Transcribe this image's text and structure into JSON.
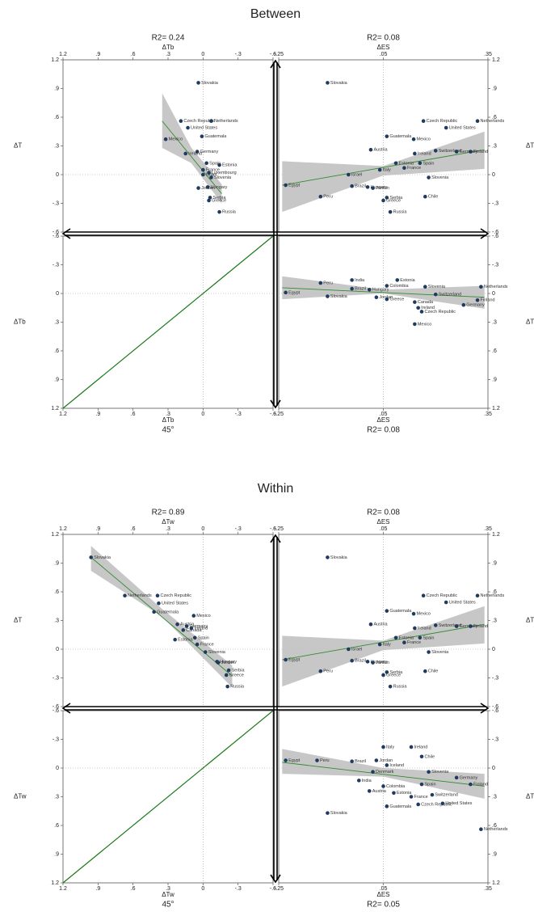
{
  "chart_data": [
    {
      "type": "scatter",
      "title": "Between",
      "annotation": "R2= 0.24",
      "xlabel": "ΔTb",
      "ylabel": "ΔT",
      "xaxis": "top",
      "yaxis": "left",
      "xlim": [
        1.2,
        -0.6
      ],
      "xticks": [
        1.2,
        {
          "value": 0.9,
          "label": ".9"
        },
        {
          "value": 0.6,
          "label": ".6"
        },
        {
          "value": 0.3,
          "label": ".3"
        },
        0,
        {
          "value": -0.3,
          "label": "-.3"
        },
        {
          "value": -0.6,
          "label": "-.6"
        }
      ],
      "ylim": [
        -0.6,
        1.2
      ],
      "yticks": [
        {
          "value": -0.6,
          "label": "-.6"
        },
        {
          "value": -0.3,
          "label": "-.3"
        },
        0,
        {
          "value": 0.3,
          "label": ".3"
        },
        {
          "value": 0.6,
          "label": ".6"
        },
        {
          "value": 0.9,
          "label": ".9"
        },
        1.2
      ],
      "reflines": {
        "x": 0,
        "y": 0
      },
      "color": "#1f3b5e",
      "labels": [
        "Slovakia",
        "Czech Republic",
        "Netherlands",
        "United States",
        "Guatemala",
        "Mexico",
        "Germany",
        "Ireland",
        "Estonia",
        "Spain",
        "Luxembourg",
        "France",
        "Slovenia",
        "Israel",
        "Hungary",
        "Jordan",
        "Serbia",
        "Greece",
        "Russia"
      ],
      "x": [
        0.04,
        0.19,
        -0.07,
        0.13,
        0.01,
        0.32,
        0.05,
        0.15,
        -0.14,
        -0.03,
        -0.05,
        0.0,
        -0.07,
        0.0,
        -0.04,
        0.04,
        -0.06,
        -0.05,
        -0.14
      ],
      "values": [
        0.96,
        0.56,
        0.56,
        0.49,
        0.4,
        0.37,
        0.24,
        0.22,
        0.1,
        0.12,
        0.02,
        0.05,
        -0.03,
        0.0,
        -0.13,
        -0.14,
        -0.24,
        -0.27,
        -0.39
      ],
      "fit": {
        "color": "#2e8b2e",
        "x": [
          0.35,
          -0.16
        ],
        "values": [
          0.56,
          -0.2
        ]
      },
      "ci": {
        "color": "#bdbdbd",
        "x": [
          0.35,
          0.1,
          -0.16
        ],
        "lo": [
          0.28,
          0.12,
          -0.3
        ],
        "hi": [
          0.85,
          0.28,
          -0.1
        ]
      }
    },
    {
      "type": "scatter",
      "annotation": "R2= 0.08",
      "xlabel": "ΔES",
      "ylabel": "ΔT",
      "xaxis": "top",
      "yaxis": "right",
      "xlim": [
        -0.25,
        0.35
      ],
      "xticks": [
        {
          "value": -0.25,
          "label": "-.25"
        },
        {
          "value": 0.05,
          "label": ".05"
        },
        {
          "value": 0.35,
          "label": ".35"
        }
      ],
      "ylim": [
        -0.6,
        1.2
      ],
      "yticks": [
        {
          "value": -0.6,
          "label": "-.6"
        },
        {
          "value": -0.3,
          "label": "-.3"
        },
        0,
        {
          "value": 0.3,
          "label": ".3"
        },
        {
          "value": 0.6,
          "label": ".6"
        },
        {
          "value": 0.9,
          "label": ".9"
        },
        1.2
      ],
      "reflines": {
        "x": 0.05,
        "y": 0
      },
      "color": "#1f3b5e",
      "labels": [
        "Slovakia",
        "Czech Republic",
        "Netherlands",
        "United States",
        "Guatemala",
        "Mexico",
        "Austria",
        "Switzerland",
        "Germany",
        "Finland",
        "Ireland",
        "Estonia",
        "Spain",
        "France",
        "Italy",
        "Slovenia",
        "Israel",
        "Egypt",
        "Brazil",
        "Hungary",
        "Jordan",
        "Peru",
        "Serbia",
        "Greece",
        "Chile",
        "Russia"
      ],
      "x": [
        -0.11,
        0.165,
        0.32,
        0.23,
        0.06,
        0.137,
        0.014,
        0.2,
        0.26,
        0.3,
        0.14,
        0.086,
        0.155,
        0.11,
        0.04,
        0.18,
        -0.05,
        -0.23,
        -0.04,
        0.005,
        0.02,
        -0.13,
        0.06,
        0.05,
        0.17,
        0.07
      ],
      "values": [
        0.96,
        0.56,
        0.56,
        0.49,
        0.4,
        0.37,
        0.26,
        0.25,
        0.24,
        0.24,
        0.22,
        0.12,
        0.12,
        0.07,
        0.05,
        -0.03,
        0.0,
        -0.11,
        -0.12,
        -0.13,
        -0.14,
        -0.23,
        -0.24,
        -0.27,
        -0.23,
        -0.39
      ],
      "fit": {
        "color": "#2e8b2e",
        "x": [
          -0.24,
          0.34
        ],
        "values": [
          -0.11,
          0.26
        ]
      },
      "ci": {
        "color": "#bdbdbd",
        "x": [
          -0.24,
          0.05,
          0.34
        ],
        "lo": [
          -0.39,
          -0.01,
          0.06
        ],
        "hi": [
          0.14,
          0.09,
          0.45
        ]
      }
    },
    {
      "type": "line",
      "annotation": "45°",
      "xlabel": "ΔTb",
      "ylabel": "ΔTb",
      "xaxis": "bottom",
      "yaxis": "left",
      "xlim": [
        1.2,
        -0.6
      ],
      "xticks": [
        1.2,
        {
          "value": 0.9,
          "label": ".9"
        },
        {
          "value": 0.6,
          "label": ".6"
        },
        {
          "value": 0.3,
          "label": ".3"
        },
        0,
        {
          "value": -0.3,
          "label": "-.3"
        },
        {
          "value": -0.6,
          "label": "-.6"
        }
      ],
      "ylim": [
        1.2,
        -0.6
      ],
      "yticks": [
        {
          "value": -0.6,
          "label": "-.6"
        },
        {
          "value": -0.3,
          "label": "-.3"
        },
        0,
        {
          "value": 0.3,
          "label": ".3"
        },
        {
          "value": 0.6,
          "label": ".6"
        },
        {
          "value": 0.9,
          "label": ".9"
        },
        1.2
      ],
      "reflines": {
        "x": 0,
        "y": 0
      },
      "color": "#1a7a1a",
      "x": [
        1.2,
        -0.6
      ],
      "values": [
        1.2,
        -0.6
      ]
    },
    {
      "type": "scatter",
      "annotation": "R2= 0.08",
      "xlabel": "ΔES",
      "ylabel": "ΔTb",
      "xaxis": "bottom",
      "yaxis": "right",
      "xlim": [
        -0.25,
        0.35
      ],
      "xticks": [
        {
          "value": -0.25,
          "label": "-.25"
        },
        {
          "value": 0.05,
          "label": ".05"
        },
        {
          "value": 0.35,
          "label": ".35"
        }
      ],
      "ylim": [
        1.2,
        -0.6
      ],
      "yticks": [
        {
          "value": -0.6,
          "label": "-.6"
        },
        {
          "value": -0.3,
          "label": "-.3"
        },
        0,
        {
          "value": 0.3,
          "label": ".3"
        },
        {
          "value": 0.6,
          "label": ".6"
        },
        {
          "value": 0.9,
          "label": ".9"
        },
        1.2
      ],
      "reflines": {
        "x": 0.05,
        "y": 0
      },
      "color": "#1f3b5e",
      "labels": [
        "Egypt",
        "Peru",
        "India",
        "Slovakia",
        "Brazil",
        "Hungary",
        "Jordan",
        "Estonia",
        "Colombia",
        "Slovenia",
        "Netherlands",
        "Switzerland",
        "Finland",
        "Germany",
        "Canada",
        "Ireland",
        "Czech Republic",
        "Mexico",
        "Greece"
      ],
      "x": [
        -0.23,
        -0.13,
        -0.04,
        -0.11,
        -0.04,
        0.01,
        0.03,
        0.09,
        0.06,
        0.17,
        0.33,
        0.2,
        0.32,
        0.28,
        0.14,
        0.15,
        0.16,
        0.14,
        0.06
      ],
      "values": [
        -0.01,
        -0.11,
        -0.14,
        0.03,
        -0.05,
        -0.04,
        0.04,
        -0.14,
        -0.08,
        -0.07,
        -0.07,
        0.01,
        0.07,
        0.12,
        0.09,
        0.15,
        0.19,
        0.32,
        0.06
      ],
      "fit": {
        "color": "#2e8b2e",
        "x": [
          -0.24,
          0.34
        ],
        "values": [
          -0.06,
          0.04
        ]
      },
      "ci": {
        "color": "#bdbdbd",
        "x": [
          -0.24,
          0.05,
          0.34
        ],
        "lo": [
          -0.18,
          -0.04,
          -0.08
        ],
        "hi": [
          0.06,
          0.0,
          0.16
        ]
      }
    },
    {
      "type": "scatter",
      "title": "Within",
      "annotation": "R2= 0.89",
      "xlabel": "ΔTw",
      "ylabel": "ΔT",
      "xaxis": "top",
      "yaxis": "left",
      "xlim": [
        1.2,
        -0.6
      ],
      "xticks": [
        1.2,
        {
          "value": 0.9,
          "label": ".9"
        },
        {
          "value": 0.6,
          "label": ".6"
        },
        {
          "value": 0.3,
          "label": ".3"
        },
        0,
        {
          "value": -0.3,
          "label": "-.3"
        },
        {
          "value": -0.6,
          "label": "-.6"
        }
      ],
      "ylim": [
        -0.6,
        1.2
      ],
      "yticks": [
        {
          "value": -0.6,
          "label": "-.6"
        },
        {
          "value": -0.3,
          "label": "-.3"
        },
        0,
        {
          "value": 0.3,
          "label": ".3"
        },
        {
          "value": 0.6,
          "label": ".6"
        },
        {
          "value": 0.9,
          "label": ".9"
        },
        1.2
      ],
      "reflines": {
        "x": 0,
        "y": 0
      },
      "color": "#1f3b5e",
      "labels": [
        "Slovakia",
        "Netherlands",
        "Czech Republic",
        "United States",
        "Guatemala",
        "Mexico",
        "Germany",
        "Canada",
        "Estonia",
        "Spain",
        "France",
        "Slovenia",
        "Hungary",
        "Jordan",
        "Serbia",
        "Greece",
        "Russia",
        "Austria",
        "Ireland"
      ],
      "x": [
        0.96,
        0.67,
        0.39,
        0.38,
        0.42,
        0.08,
        0.14,
        0.17,
        0.24,
        0.07,
        0.05,
        -0.02,
        -0.12,
        -0.13,
        -0.22,
        -0.2,
        -0.21,
        0.22,
        0.1
      ],
      "values": [
        0.96,
        0.56,
        0.56,
        0.48,
        0.39,
        0.35,
        0.24,
        0.2,
        0.1,
        0.12,
        0.05,
        -0.03,
        -0.13,
        -0.14,
        -0.22,
        -0.27,
        -0.39,
        0.26,
        0.22
      ],
      "fit": {
        "color": "#2e8b2e",
        "x": [
          0.96,
          -0.25
        ],
        "values": [
          0.96,
          -0.28
        ]
      },
      "ci": {
        "color": "#bdbdbd",
        "x": [
          0.96,
          0.35,
          -0.25
        ],
        "lo": [
          0.82,
          0.34,
          -0.4
        ],
        "hi": [
          1.08,
          0.42,
          -0.17
        ]
      }
    },
    {
      "type": "scatter",
      "annotation": "R2= 0.08",
      "xlabel": "ΔES",
      "ylabel": "ΔT",
      "xaxis": "top",
      "yaxis": "right",
      "xlim": [
        -0.25,
        0.35
      ],
      "xticks": [
        {
          "value": -0.25,
          "label": "-.25"
        },
        {
          "value": 0.05,
          "label": ".05"
        },
        {
          "value": 0.35,
          "label": ".35"
        }
      ],
      "ylim": [
        -0.6,
        1.2
      ],
      "yticks": [
        {
          "value": -0.6,
          "label": "-.6"
        },
        {
          "value": -0.3,
          "label": "-.3"
        },
        0,
        {
          "value": 0.3,
          "label": ".3"
        },
        {
          "value": 0.6,
          "label": ".6"
        },
        {
          "value": 0.9,
          "label": ".9"
        },
        1.2
      ],
      "reflines": {
        "x": 0.05,
        "y": 0
      },
      "color": "#1f3b5e",
      "labels": [
        "Slovakia",
        "Czech Republic",
        "Netherlands",
        "United States",
        "Guatemala",
        "Mexico",
        "Austria",
        "Switzerland",
        "Germany",
        "Finland",
        "Ireland",
        "Estonia",
        "Spain",
        "France",
        "Italy",
        "Slovenia",
        "Israel",
        "Egypt",
        "Brazil",
        "Hungary",
        "Jordan",
        "Peru",
        "Serbia",
        "Greece",
        "Chile",
        "Russia"
      ],
      "x": [
        -0.11,
        0.165,
        0.32,
        0.23,
        0.06,
        0.137,
        0.014,
        0.2,
        0.26,
        0.3,
        0.14,
        0.086,
        0.155,
        0.11,
        0.04,
        0.18,
        -0.05,
        -0.23,
        -0.04,
        0.005,
        0.02,
        -0.13,
        0.06,
        0.05,
        0.17,
        0.07
      ],
      "values": [
        0.96,
        0.56,
        0.56,
        0.49,
        0.4,
        0.37,
        0.26,
        0.25,
        0.24,
        0.24,
        0.22,
        0.12,
        0.12,
        0.07,
        0.05,
        -0.03,
        0.0,
        -0.11,
        -0.12,
        -0.13,
        -0.14,
        -0.23,
        -0.24,
        -0.27,
        -0.23,
        -0.39
      ],
      "fit": {
        "color": "#2e8b2e",
        "x": [
          -0.24,
          0.34
        ],
        "values": [
          -0.11,
          0.26
        ]
      },
      "ci": {
        "color": "#bdbdbd",
        "x": [
          -0.24,
          0.05,
          0.34
        ],
        "lo": [
          -0.39,
          -0.01,
          0.06
        ],
        "hi": [
          0.14,
          0.09,
          0.45
        ]
      }
    },
    {
      "type": "line",
      "annotation": "45°",
      "xlabel": "ΔTw",
      "ylabel": "ΔTw",
      "xaxis": "bottom",
      "yaxis": "left",
      "xlim": [
        1.2,
        -0.6
      ],
      "xticks": [
        1.2,
        {
          "value": 0.9,
          "label": ".9"
        },
        {
          "value": 0.6,
          "label": ".6"
        },
        {
          "value": 0.3,
          "label": ".3"
        },
        0,
        {
          "value": -0.3,
          "label": "-.3"
        },
        {
          "value": -0.6,
          "label": "-.6"
        }
      ],
      "ylim": [
        1.2,
        -0.6
      ],
      "yticks": [
        {
          "value": -0.6,
          "label": "-.6"
        },
        {
          "value": -0.3,
          "label": "-.3"
        },
        0,
        {
          "value": 0.3,
          "label": ".3"
        },
        {
          "value": 0.6,
          "label": ".6"
        },
        {
          "value": 0.9,
          "label": ".9"
        },
        1.2
      ],
      "reflines": {
        "x": 0,
        "y": 0
      },
      "color": "#1a7a1a",
      "x": [
        1.2,
        -0.6
      ],
      "values": [
        1.2,
        -0.6
      ]
    },
    {
      "type": "scatter",
      "annotation": "R2= 0.05",
      "xlabel": "ΔES",
      "ylabel": "ΔTw",
      "xaxis": "bottom",
      "yaxis": "right",
      "xlim": [
        -0.25,
        0.35
      ],
      "xticks": [
        {
          "value": -0.25,
          "label": "-.25"
        },
        {
          "value": 0.05,
          "label": ".05"
        },
        {
          "value": 0.35,
          "label": ".35"
        }
      ],
      "ylim": [
        1.2,
        -0.6
      ],
      "yticks": [
        {
          "value": -0.6,
          "label": "-.6"
        },
        {
          "value": -0.3,
          "label": "-.3"
        },
        0,
        {
          "value": 0.3,
          "label": ".3"
        },
        {
          "value": 0.6,
          "label": ".6"
        },
        {
          "value": 0.9,
          "label": ".9"
        },
        1.2
      ],
      "reflines": {
        "x": 0.05,
        "y": 0
      },
      "color": "#1f3b5e",
      "labels": [
        "Egypt",
        "Peru",
        "Brazil",
        "Jordan",
        "Iceland",
        "Italy",
        "Ireland",
        "Chile",
        "Denmark",
        "Slovenia",
        "Germany",
        "Finland",
        "India",
        "Colombia",
        "Spain",
        "Switzerland",
        "Austria",
        "Estonia",
        "France",
        "Czech Republic",
        "United States",
        "Guatemala",
        "Netherlands",
        "Slovakia"
      ],
      "x": [
        -0.23,
        -0.14,
        -0.04,
        0.03,
        0.06,
        0.05,
        0.13,
        0.16,
        0.02,
        0.18,
        0.26,
        0.3,
        -0.02,
        0.05,
        0.16,
        0.19,
        0.01,
        0.08,
        0.13,
        0.15,
        0.22,
        0.06,
        0.33,
        -0.11
      ],
      "values": [
        -0.08,
        -0.08,
        -0.07,
        -0.08,
        -0.03,
        -0.22,
        -0.22,
        -0.12,
        0.04,
        0.04,
        0.1,
        0.17,
        0.13,
        0.19,
        0.17,
        0.28,
        0.24,
        0.26,
        0.3,
        0.38,
        0.37,
        0.4,
        0.64,
        0.47
      ],
      "fit": {
        "color": "#2e8b2e",
        "x": [
          -0.24,
          0.34
        ],
        "values": [
          -0.06,
          0.19
        ]
      },
      "ci": {
        "color": "#bdbdbd",
        "x": [
          -0.24,
          0.05,
          0.34
        ],
        "lo": [
          -0.2,
          0.0,
          0.06
        ],
        "hi": [
          0.06,
          0.09,
          0.32
        ]
      }
    }
  ]
}
